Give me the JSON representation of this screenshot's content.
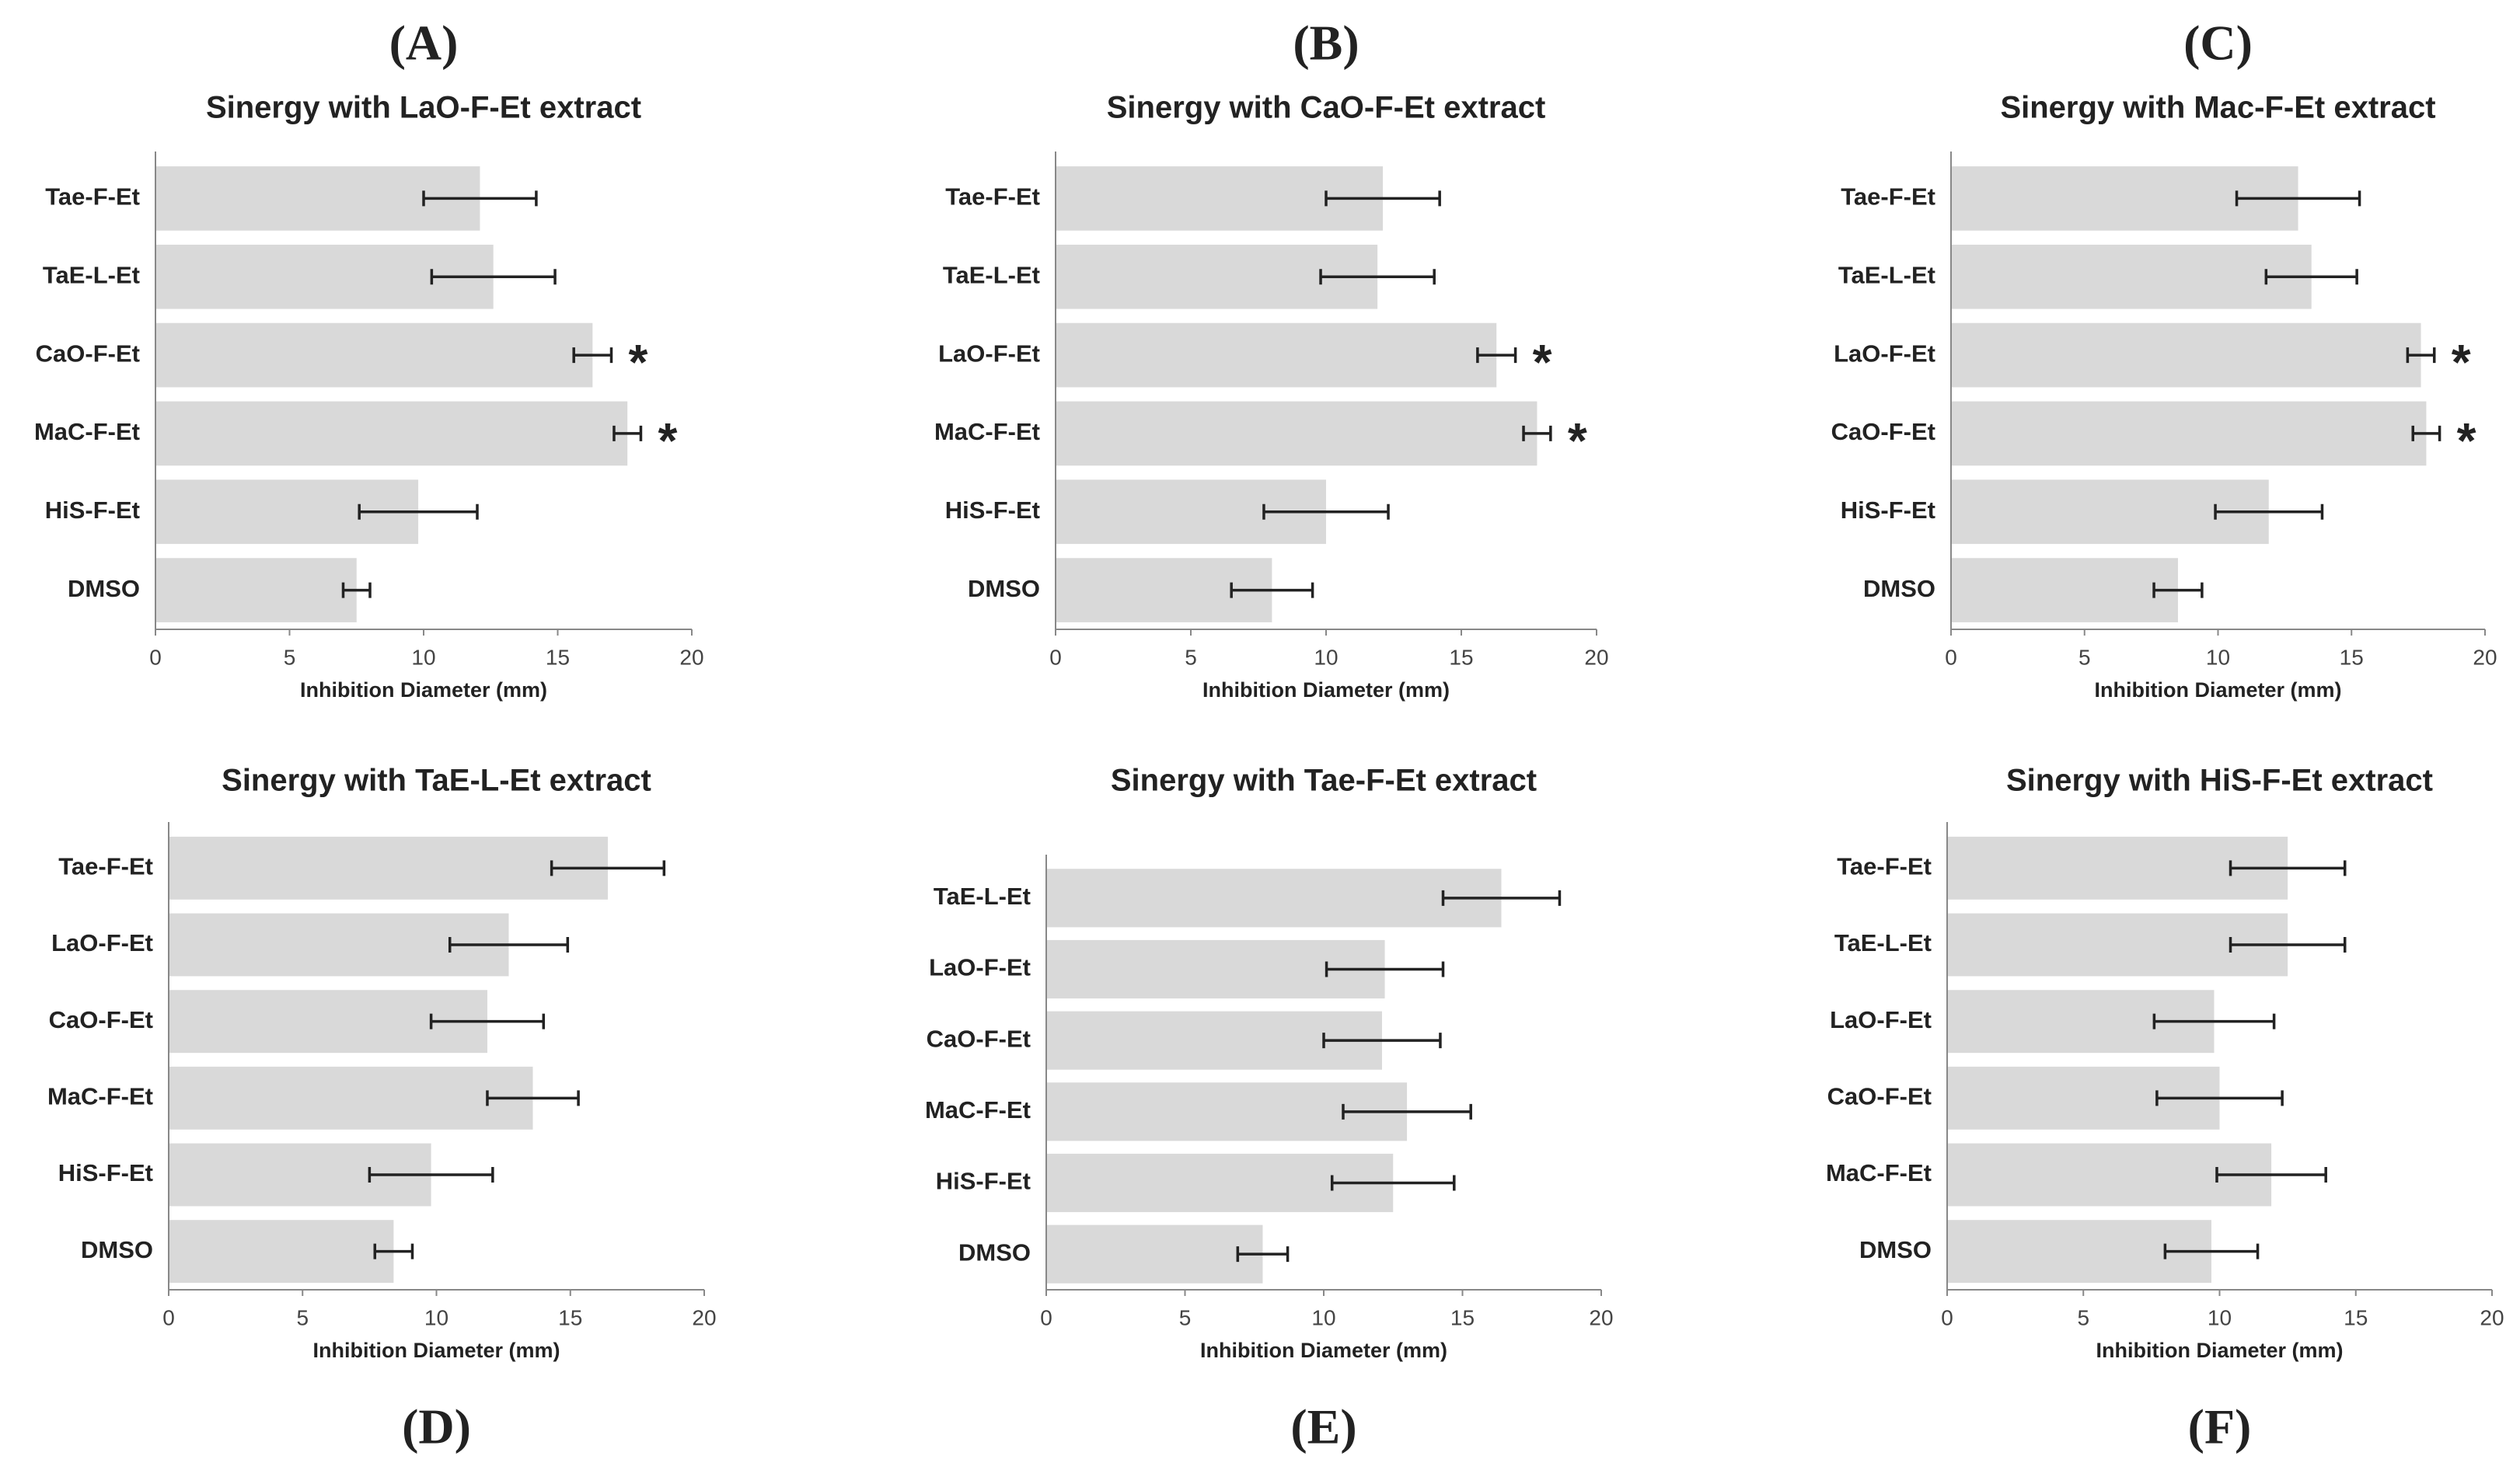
{
  "chart_data": [
    {
      "type": "bar",
      "orientation": "horizontal",
      "panel": "(A)",
      "title": "Sinergy with LaO-F-Et extract",
      "xlabel": "Inhibition Diameter (mm)",
      "categories": [
        "Tae-F-Et",
        "TaE-L-Et",
        "CaO-F-Et",
        "MaC-F-Et",
        "HiS-F-Et",
        "DMSO"
      ],
      "values": [
        12.1,
        12.6,
        16.3,
        17.6,
        9.8,
        7.5
      ],
      "errors": [
        2.1,
        2.3,
        0.7,
        0.5,
        2.2,
        0.5
      ],
      "significance": [
        null,
        null,
        "*",
        "*",
        null,
        null
      ],
      "color": "#d9d9d9",
      "xlim": [
        0,
        20
      ],
      "xticks": [
        0,
        5,
        10,
        15,
        20
      ]
    },
    {
      "type": "bar",
      "orientation": "horizontal",
      "panel": "(B)",
      "title": "Sinergy with CaO-F-Et extract",
      "xlabel": "Inhibition Diameter (mm)",
      "categories": [
        "Tae-F-Et",
        "TaE-L-Et",
        "LaO-F-Et",
        "MaC-F-Et",
        "HiS-F-Et",
        "DMSO"
      ],
      "values": [
        12.1,
        11.9,
        16.3,
        17.8,
        10.0,
        8.0
      ],
      "errors": [
        2.1,
        2.1,
        0.7,
        0.5,
        2.3,
        1.5
      ],
      "significance": [
        null,
        null,
        "*",
        "*",
        null,
        null
      ],
      "color": "#d9d9d9",
      "xlim": [
        0,
        20
      ],
      "xticks": [
        0,
        5,
        10,
        15,
        20
      ]
    },
    {
      "type": "bar",
      "orientation": "horizontal",
      "panel": "(C)",
      "title": "Sinergy with Mac-F-Et extract",
      "xlabel": "Inhibition Diameter (mm)",
      "categories": [
        "Tae-F-Et",
        "TaE-L-Et",
        "LaO-F-Et",
        "CaO-F-Et",
        "HiS-F-Et",
        "DMSO"
      ],
      "values": [
        13.0,
        13.5,
        17.6,
        17.8,
        11.9,
        8.5
      ],
      "errors": [
        2.3,
        1.7,
        0.5,
        0.5,
        2.0,
        0.9
      ],
      "significance": [
        null,
        null,
        "*",
        "*",
        null,
        null
      ],
      "color": "#d9d9d9",
      "xlim": [
        0,
        20
      ],
      "xticks": [
        0,
        5,
        10,
        15,
        20
      ]
    },
    {
      "type": "bar",
      "orientation": "horizontal",
      "panel": "(D)",
      "title": "Sinergy with TaE-L-Et extract",
      "xlabel": "Inhibition Diameter (mm)",
      "categories": [
        "Tae-F-Et",
        "LaO-F-Et",
        "CaO-F-Et",
        "MaC-F-Et",
        "HiS-F-Et",
        "DMSO"
      ],
      "values": [
        16.4,
        12.7,
        11.9,
        13.6,
        9.8,
        8.4
      ],
      "errors": [
        2.1,
        2.2,
        2.1,
        1.7,
        2.3,
        0.7
      ],
      "significance": [
        null,
        null,
        null,
        null,
        null,
        null
      ],
      "color": "#d9d9d9",
      "xlim": [
        0,
        20
      ],
      "xticks": [
        0,
        5,
        10,
        15,
        20
      ]
    },
    {
      "type": "bar",
      "orientation": "horizontal",
      "panel": "(E)",
      "title": "Sinergy with Tae-F-Et extract",
      "xlabel": "Inhibition Diameter (mm)",
      "categories": [
        "TaE-L-Et",
        "LaO-F-Et",
        "CaO-F-Et",
        "MaC-F-Et",
        "HiS-F-Et",
        "DMSO"
      ],
      "values": [
        16.4,
        12.2,
        12.1,
        13.0,
        12.5,
        7.8
      ],
      "errors": [
        2.1,
        2.1,
        2.1,
        2.3,
        2.2,
        0.9
      ],
      "significance": [
        null,
        null,
        null,
        null,
        null,
        null
      ],
      "color": "#d9d9d9",
      "xlim": [
        0,
        20
      ],
      "xticks": [
        0,
        5,
        10,
        15,
        20
      ]
    },
    {
      "type": "bar",
      "orientation": "horizontal",
      "panel": "(F)",
      "title": "Sinergy with HiS-F-Et extract",
      "xlabel": "Inhibition Diameter (mm)",
      "categories": [
        "Tae-F-Et",
        "TaE-L-Et",
        "LaO-F-Et",
        "CaO-F-Et",
        "MaC-F-Et",
        "DMSO"
      ],
      "values": [
        12.5,
        12.5,
        9.8,
        10.0,
        11.9,
        9.7
      ],
      "errors": [
        2.1,
        2.1,
        2.2,
        2.3,
        2.0,
        1.7
      ],
      "significance": [
        null,
        null,
        null,
        null,
        null,
        null
      ],
      "color": "#d9d9d9",
      "xlim": [
        0,
        20
      ],
      "xticks": [
        0,
        5,
        10,
        15,
        20
      ]
    }
  ]
}
